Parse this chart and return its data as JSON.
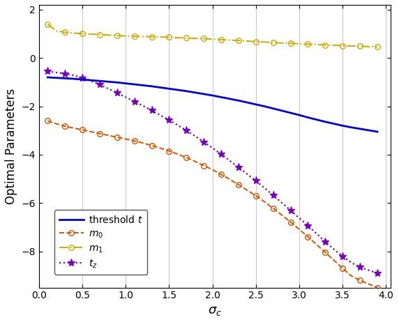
{
  "title": "",
  "xlabel": "$\\sigma_c$",
  "ylabel": "Optimal Parameters",
  "xlim": [
    0,
    4.05
  ],
  "ylim": [
    -9.5,
    2.2
  ],
  "yticks": [
    -8,
    -6,
    -4,
    -2,
    0,
    2
  ],
  "xticks": [
    0,
    0.5,
    1,
    1.5,
    2,
    2.5,
    3,
    3.5,
    4
  ],
  "grid_color": "#c8c8c8",
  "background_color": "#ffffff",
  "series": {
    "threshold_t": {
      "label": "threshold $t$",
      "color": "#0000dd",
      "linestyle": "-",
      "linewidth": 2.0
    },
    "m0": {
      "label": "$m_0$",
      "color": "#d45500",
      "linestyle": "--",
      "linewidth": 1.4,
      "marker": "o",
      "markersize": 5.5
    },
    "m1": {
      "label": "$m_1$",
      "color": "#ccaa00",
      "linestyle": "-.",
      "linewidth": 1.4,
      "marker": "o",
      "markersize": 5.5
    },
    "tz": {
      "label": "$t_z$",
      "color": "#7700bb",
      "linestyle": ":",
      "linewidth": 1.6,
      "marker": "*",
      "markersize": 8
    }
  },
  "sigma_c": [
    0.1,
    0.2,
    0.3,
    0.4,
    0.5,
    0.6,
    0.7,
    0.8,
    0.9,
    1.0,
    1.1,
    1.2,
    1.3,
    1.4,
    1.5,
    1.6,
    1.7,
    1.8,
    1.9,
    2.0,
    2.1,
    2.2,
    2.3,
    2.4,
    2.5,
    2.6,
    2.7,
    2.8,
    2.9,
    3.0,
    3.1,
    3.2,
    3.3,
    3.4,
    3.5,
    3.6,
    3.7,
    3.8,
    3.9
  ],
  "threshold_t_vals": [
    -0.8,
    -0.82,
    -0.84,
    -0.86,
    -0.89,
    -0.92,
    -0.95,
    -0.98,
    -1.01,
    -1.05,
    -1.09,
    -1.13,
    -1.17,
    -1.22,
    -1.27,
    -1.32,
    -1.37,
    -1.43,
    -1.49,
    -1.55,
    -1.62,
    -1.69,
    -1.76,
    -1.84,
    -1.92,
    -2.0,
    -2.09,
    -2.18,
    -2.27,
    -2.36,
    -2.46,
    -2.55,
    -2.64,
    -2.72,
    -2.8,
    -2.87,
    -2.93,
    -2.99,
    -3.05
  ],
  "m0_sigma_c": [
    0.1,
    0.2,
    0.3,
    0.4,
    0.5,
    0.6,
    0.7,
    0.8,
    0.9,
    1.0,
    1.1,
    1.2,
    1.3,
    1.4,
    1.5,
    1.6,
    1.7,
    1.8,
    1.9,
    2.0,
    2.1,
    2.2,
    2.3,
    2.4,
    2.5,
    2.6,
    2.7,
    2.8,
    2.9,
    3.0,
    3.1,
    3.2,
    3.3,
    3.4,
    3.5,
    3.6,
    3.7,
    3.8,
    3.9
  ],
  "m0_vals": [
    -2.6,
    -2.72,
    -2.82,
    -2.9,
    -2.97,
    -3.05,
    -3.13,
    -3.2,
    -3.28,
    -3.35,
    -3.43,
    -3.52,
    -3.62,
    -3.73,
    -3.85,
    -3.98,
    -4.12,
    -4.28,
    -4.45,
    -4.62,
    -4.82,
    -5.02,
    -5.24,
    -5.47,
    -5.7,
    -5.95,
    -6.22,
    -6.5,
    -6.79,
    -7.09,
    -7.4,
    -7.72,
    -8.04,
    -8.37,
    -8.7,
    -9.02,
    -9.2,
    -9.35,
    -9.5
  ],
  "m1_sigma_c": [
    0.1,
    0.2,
    0.3,
    0.4,
    0.5,
    0.6,
    0.7,
    0.8,
    0.9,
    1.0,
    1.1,
    1.2,
    1.3,
    1.4,
    1.5,
    1.6,
    1.7,
    1.8,
    1.9,
    2.0,
    2.1,
    2.2,
    2.3,
    2.4,
    2.5,
    2.6,
    2.7,
    2.8,
    2.9,
    3.0,
    3.1,
    3.2,
    3.3,
    3.4,
    3.5,
    3.6,
    3.7,
    3.8,
    3.9
  ],
  "m1_vals": [
    1.4,
    1.12,
    1.06,
    1.03,
    1.01,
    0.99,
    0.97,
    0.95,
    0.93,
    0.91,
    0.9,
    0.89,
    0.88,
    0.87,
    0.86,
    0.84,
    0.83,
    0.81,
    0.8,
    0.78,
    0.76,
    0.74,
    0.72,
    0.7,
    0.68,
    0.66,
    0.64,
    0.62,
    0.61,
    0.59,
    0.57,
    0.56,
    0.54,
    0.53,
    0.51,
    0.5,
    0.49,
    0.47,
    0.46
  ],
  "tz_sigma_c": [
    0.1,
    0.2,
    0.3,
    0.4,
    0.5,
    0.6,
    0.7,
    0.8,
    0.9,
    1.0,
    1.1,
    1.2,
    1.3,
    1.4,
    1.5,
    1.6,
    1.7,
    1.8,
    1.9,
    2.0,
    2.1,
    2.2,
    2.3,
    2.4,
    2.5,
    2.6,
    2.7,
    2.8,
    2.9,
    3.0,
    3.1,
    3.2,
    3.3,
    3.4,
    3.5,
    3.6,
    3.7,
    3.8,
    3.9
  ],
  "tz_vals": [
    -0.55,
    -0.6,
    -0.65,
    -0.72,
    -0.82,
    -0.95,
    -1.1,
    -1.27,
    -1.44,
    -1.62,
    -1.8,
    -1.98,
    -2.17,
    -2.37,
    -2.57,
    -2.78,
    -3.0,
    -3.23,
    -3.47,
    -3.72,
    -3.98,
    -4.25,
    -4.53,
    -4.8,
    -5.08,
    -5.38,
    -5.68,
    -5.99,
    -6.3,
    -6.62,
    -6.94,
    -7.27,
    -7.6,
    -7.92,
    -8.2,
    -8.47,
    -8.65,
    -8.78,
    -8.9
  ]
}
